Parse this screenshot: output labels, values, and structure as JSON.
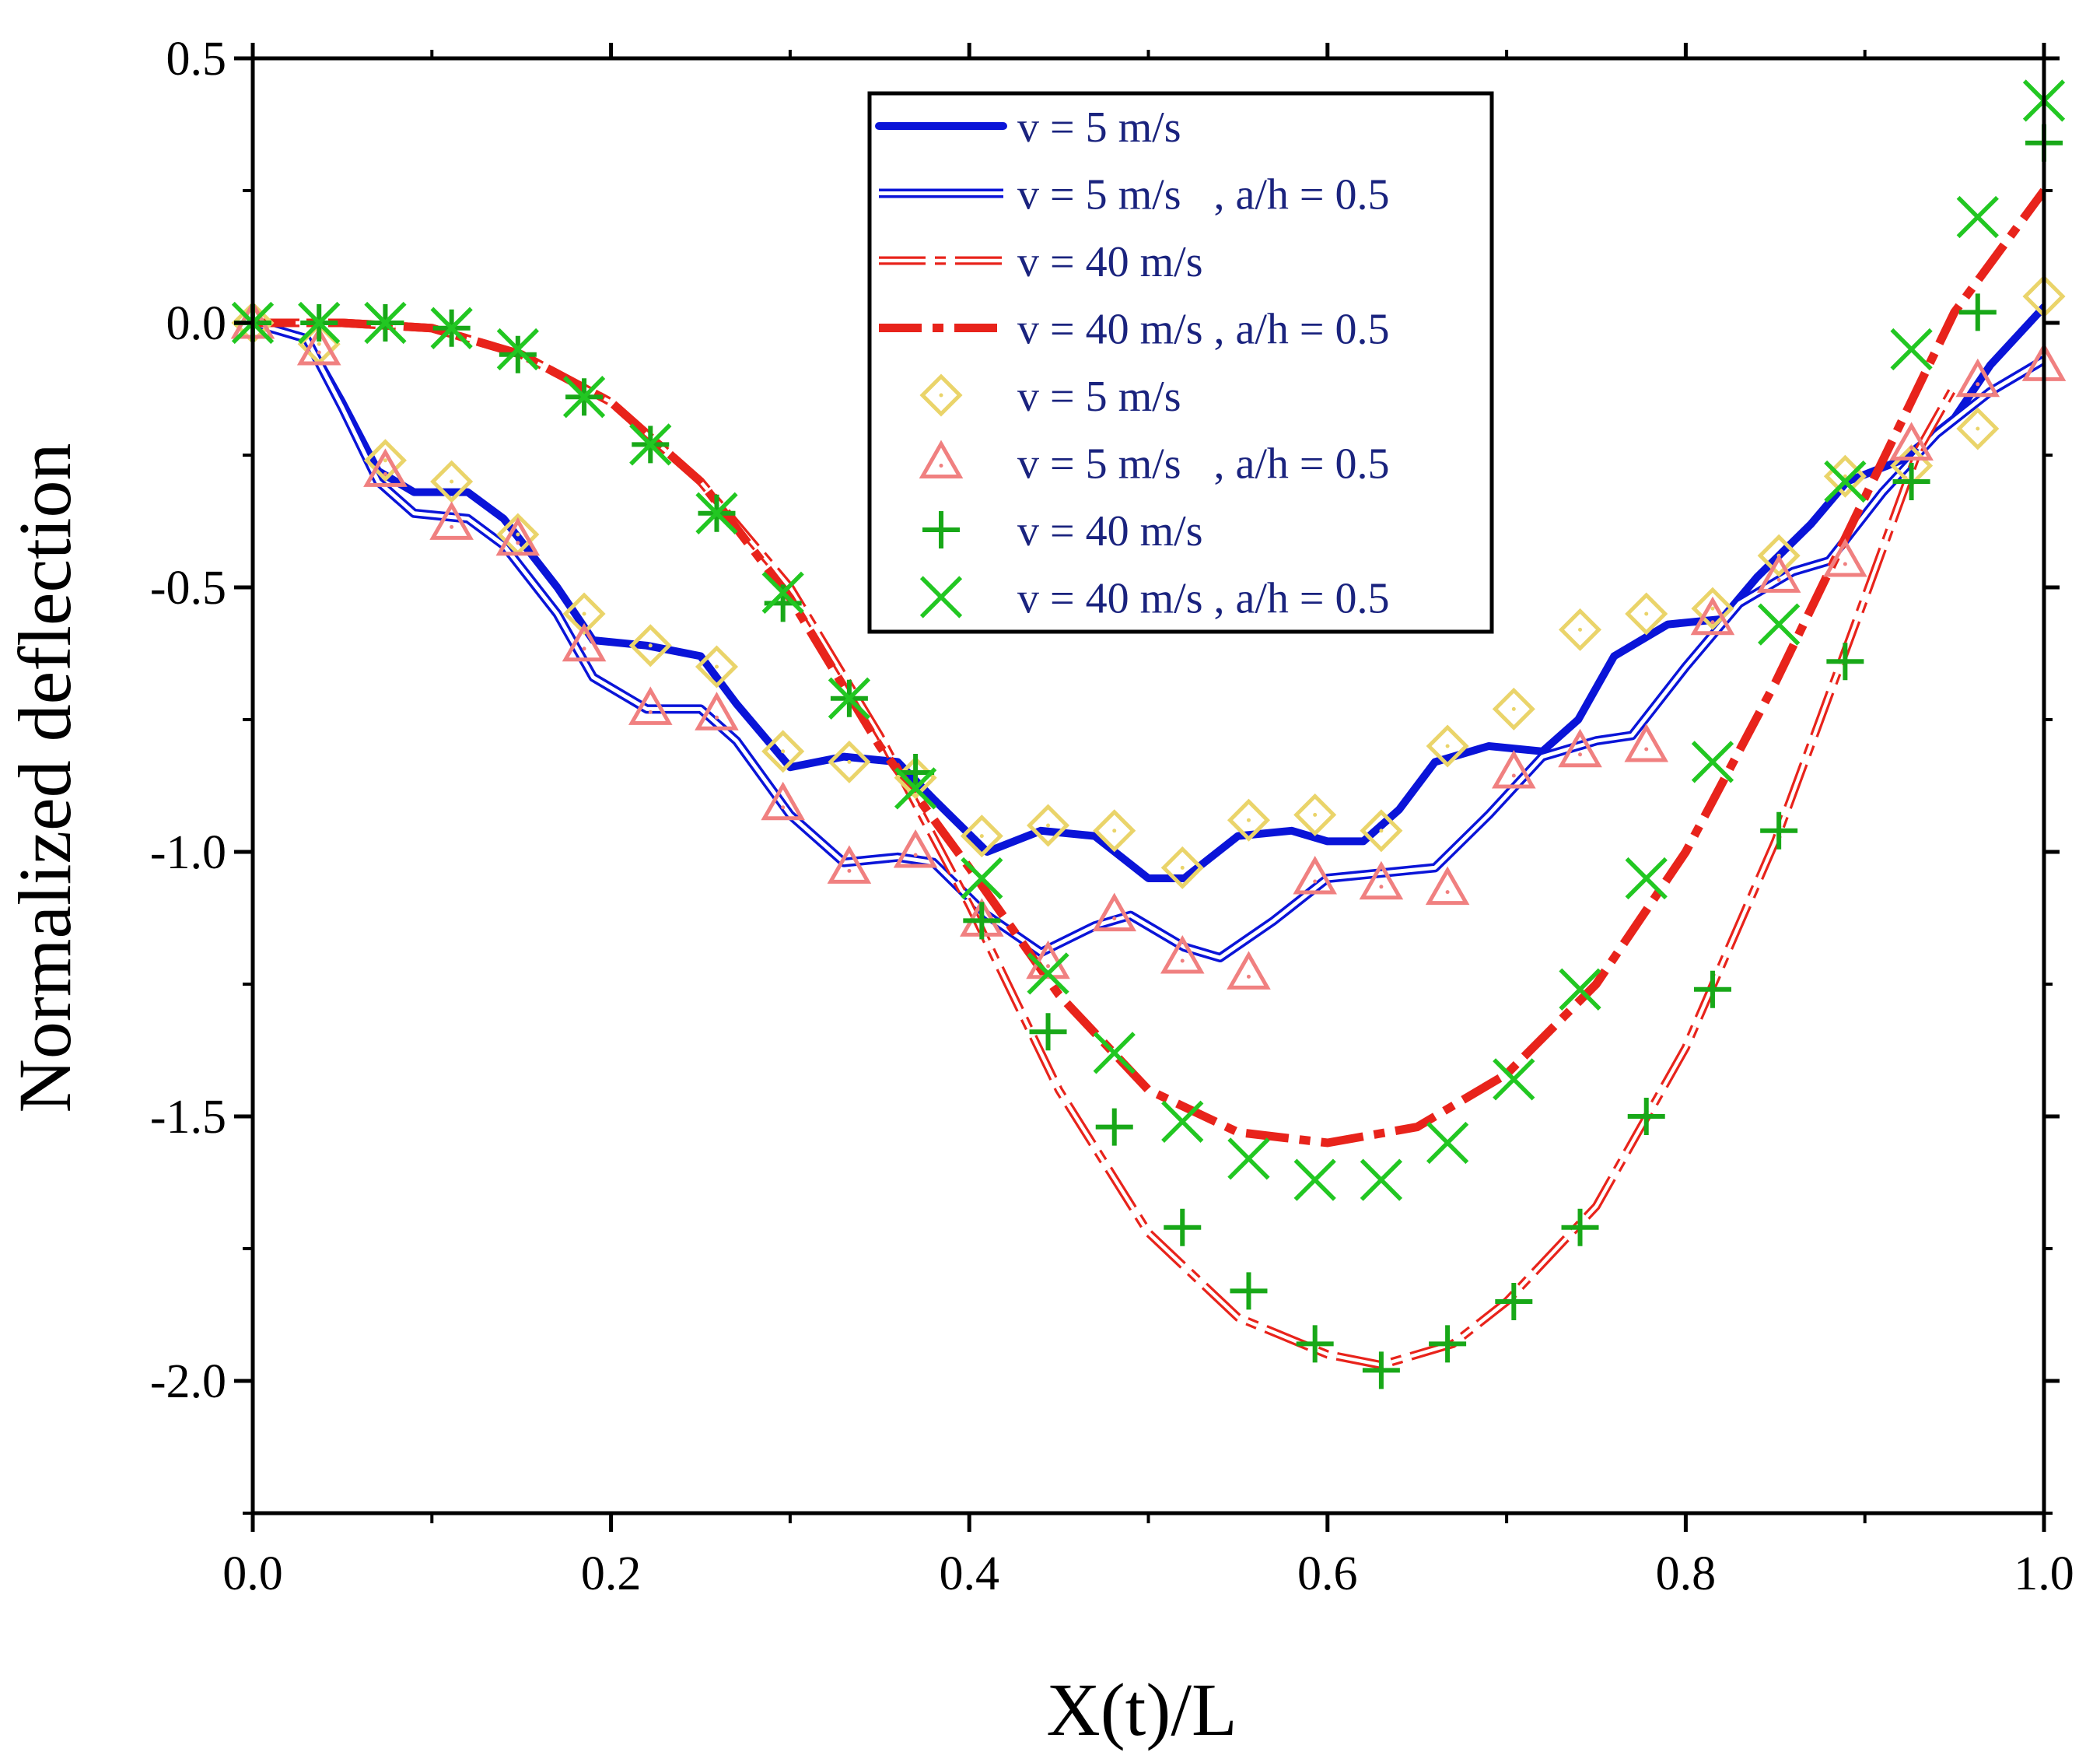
{
  "chart_data": {
    "type": "line",
    "title": "",
    "xlabel": "X(t)/L",
    "ylabel": "Normalized deflection",
    "xlim": [
      0,
      1
    ],
    "ylim": [
      -2.25,
      0.5
    ],
    "x_ticks": [
      0.0,
      0.2,
      0.4,
      0.6,
      0.8,
      1.0
    ],
    "x_tick_labels": [
      "0.0",
      "0.2",
      "0.4",
      "0.6",
      "0.8",
      "1.0"
    ],
    "y_ticks": [
      0.5,
      0.0,
      -0.5,
      -1.0,
      -1.5,
      -2.0
    ],
    "y_tick_labels": [
      "0.5",
      "0.0",
      "-0.5",
      "-1.0",
      "-1.5",
      "-2.0"
    ],
    "legend_position": "top-center",
    "series": [
      {
        "name": "v = 5 m/s",
        "style": "thick-solid",
        "color": "#0a14d8",
        "points": [
          [
            0.0,
            0.0
          ],
          [
            0.03,
            -0.03
          ],
          [
            0.05,
            -0.15
          ],
          [
            0.07,
            -0.28
          ],
          [
            0.09,
            -0.32
          ],
          [
            0.12,
            -0.32
          ],
          [
            0.14,
            -0.37
          ],
          [
            0.17,
            -0.5
          ],
          [
            0.19,
            -0.6
          ],
          [
            0.22,
            -0.61
          ],
          [
            0.25,
            -0.63
          ],
          [
            0.27,
            -0.72
          ],
          [
            0.3,
            -0.84
          ],
          [
            0.33,
            -0.82
          ],
          [
            0.36,
            -0.83
          ],
          [
            0.38,
            -0.9
          ],
          [
            0.41,
            -1.0
          ],
          [
            0.44,
            -0.96
          ],
          [
            0.47,
            -0.97
          ],
          [
            0.5,
            -1.05
          ],
          [
            0.52,
            -1.05
          ],
          [
            0.55,
            -0.97
          ],
          [
            0.58,
            -0.96
          ],
          [
            0.6,
            -0.98
          ],
          [
            0.62,
            -0.98
          ],
          [
            0.64,
            -0.92
          ],
          [
            0.66,
            -0.83
          ],
          [
            0.69,
            -0.8
          ],
          [
            0.72,
            -0.81
          ],
          [
            0.74,
            -0.75
          ],
          [
            0.76,
            -0.63
          ],
          [
            0.79,
            -0.57
          ],
          [
            0.82,
            -0.56
          ],
          [
            0.84,
            -0.48
          ],
          [
            0.87,
            -0.38
          ],
          [
            0.89,
            -0.3
          ],
          [
            0.92,
            -0.26
          ],
          [
            0.95,
            -0.18
          ],
          [
            0.97,
            -0.08
          ],
          [
            1.0,
            0.03
          ]
        ]
      },
      {
        "name": "v = 5 m/s   , a/h = 0.5",
        "style": "double-line",
        "color": "#0a14d8",
        "points": [
          [
            0.0,
            0.0
          ],
          [
            0.03,
            -0.03
          ],
          [
            0.05,
            -0.16
          ],
          [
            0.07,
            -0.3
          ],
          [
            0.09,
            -0.36
          ],
          [
            0.12,
            -0.37
          ],
          [
            0.14,
            -0.42
          ],
          [
            0.17,
            -0.55
          ],
          [
            0.19,
            -0.67
          ],
          [
            0.22,
            -0.73
          ],
          [
            0.25,
            -0.73
          ],
          [
            0.27,
            -0.79
          ],
          [
            0.3,
            -0.93
          ],
          [
            0.33,
            -1.02
          ],
          [
            0.36,
            -1.01
          ],
          [
            0.38,
            -1.02
          ],
          [
            0.41,
            -1.12
          ],
          [
            0.44,
            -1.19
          ],
          [
            0.47,
            -1.14
          ],
          [
            0.49,
            -1.12
          ],
          [
            0.52,
            -1.18
          ],
          [
            0.54,
            -1.2
          ],
          [
            0.57,
            -1.13
          ],
          [
            0.6,
            -1.05
          ],
          [
            0.63,
            -1.04
          ],
          [
            0.66,
            -1.03
          ],
          [
            0.69,
            -0.93
          ],
          [
            0.72,
            -0.82
          ],
          [
            0.75,
            -0.79
          ],
          [
            0.77,
            -0.78
          ],
          [
            0.8,
            -0.65
          ],
          [
            0.83,
            -0.53
          ],
          [
            0.86,
            -0.47
          ],
          [
            0.88,
            -0.45
          ],
          [
            0.91,
            -0.32
          ],
          [
            0.94,
            -0.21
          ],
          [
            0.97,
            -0.13
          ],
          [
            1.0,
            -0.07
          ]
        ]
      },
      {
        "name": "v = 40 m/s",
        "style": "double-dash-dot",
        "color": "#e8231b",
        "points": [
          [
            0.0,
            0.0
          ],
          [
            0.05,
            0.0
          ],
          [
            0.1,
            -0.01
          ],
          [
            0.15,
            -0.06
          ],
          [
            0.2,
            -0.15
          ],
          [
            0.25,
            -0.3
          ],
          [
            0.3,
            -0.5
          ],
          [
            0.35,
            -0.78
          ],
          [
            0.4,
            -1.1
          ],
          [
            0.45,
            -1.45
          ],
          [
            0.5,
            -1.72
          ],
          [
            0.55,
            -1.88
          ],
          [
            0.6,
            -1.95
          ],
          [
            0.63,
            -1.97
          ],
          [
            0.67,
            -1.93
          ],
          [
            0.7,
            -1.85
          ],
          [
            0.75,
            -1.67
          ],
          [
            0.8,
            -1.37
          ],
          [
            0.85,
            -0.98
          ],
          [
            0.9,
            -0.52
          ],
          [
            0.93,
            -0.24
          ],
          [
            0.95,
            -0.12
          ]
        ]
      },
      {
        "name": "v = 40 m/s , a/h = 0.5",
        "style": "thick-dash-dot",
        "color": "#e8231b",
        "points": [
          [
            0.0,
            0.0
          ],
          [
            0.05,
            0.0
          ],
          [
            0.1,
            -0.01
          ],
          [
            0.15,
            -0.06
          ],
          [
            0.2,
            -0.15
          ],
          [
            0.25,
            -0.3
          ],
          [
            0.3,
            -0.52
          ],
          [
            0.35,
            -0.8
          ],
          [
            0.4,
            -1.03
          ],
          [
            0.45,
            -1.27
          ],
          [
            0.5,
            -1.45
          ],
          [
            0.55,
            -1.53
          ],
          [
            0.6,
            -1.55
          ],
          [
            0.65,
            -1.52
          ],
          [
            0.7,
            -1.42
          ],
          [
            0.75,
            -1.25
          ],
          [
            0.8,
            -1.0
          ],
          [
            0.85,
            -0.68
          ],
          [
            0.9,
            -0.33
          ],
          [
            0.95,
            0.02
          ],
          [
            1.0,
            0.25
          ]
        ]
      },
      {
        "name": "v = 5 m/s",
        "style": "diamond",
        "color": "#ead46a",
        "points": [
          [
            0.0,
            0.0
          ],
          [
            0.037,
            -0.04
          ],
          [
            0.074,
            -0.26
          ],
          [
            0.111,
            -0.3
          ],
          [
            0.148,
            -0.4
          ],
          [
            0.185,
            -0.55
          ],
          [
            0.222,
            -0.61
          ],
          [
            0.259,
            -0.65
          ],
          [
            0.296,
            -0.81
          ],
          [
            0.333,
            -0.83
          ],
          [
            0.37,
            -0.86
          ],
          [
            0.407,
            -0.97
          ],
          [
            0.444,
            -0.95
          ],
          [
            0.481,
            -0.96
          ],
          [
            0.519,
            -1.03
          ],
          [
            0.556,
            -0.94
          ],
          [
            0.593,
            -0.93
          ],
          [
            0.63,
            -0.96
          ],
          [
            0.667,
            -0.8
          ],
          [
            0.704,
            -0.73
          ],
          [
            0.741,
            -0.58
          ],
          [
            0.778,
            -0.55
          ],
          [
            0.815,
            -0.54
          ],
          [
            0.852,
            -0.44
          ],
          [
            0.889,
            -0.29
          ],
          [
            0.926,
            -0.27
          ],
          [
            0.963,
            -0.2
          ],
          [
            1.0,
            0.05
          ]
        ]
      },
      {
        "name": "v = 5 m/s   , a/h = 0.5",
        "style": "triangle",
        "color": "#f08080",
        "points": [
          [
            0.0,
            0.0
          ],
          [
            0.037,
            -0.05
          ],
          [
            0.074,
            -0.28
          ],
          [
            0.111,
            -0.38
          ],
          [
            0.148,
            -0.41
          ],
          [
            0.185,
            -0.61
          ],
          [
            0.222,
            -0.73
          ],
          [
            0.259,
            -0.74
          ],
          [
            0.296,
            -0.91
          ],
          [
            0.333,
            -1.03
          ],
          [
            0.37,
            -1.0
          ],
          [
            0.407,
            -1.13
          ],
          [
            0.444,
            -1.21
          ],
          [
            0.481,
            -1.12
          ],
          [
            0.519,
            -1.2
          ],
          [
            0.556,
            -1.23
          ],
          [
            0.593,
            -1.05
          ],
          [
            0.63,
            -1.06
          ],
          [
            0.667,
            -1.07
          ],
          [
            0.704,
            -0.85
          ],
          [
            0.741,
            -0.81
          ],
          [
            0.778,
            -0.8
          ],
          [
            0.815,
            -0.56
          ],
          [
            0.852,
            -0.48
          ],
          [
            0.889,
            -0.45
          ],
          [
            0.926,
            -0.23
          ],
          [
            0.963,
            -0.11
          ],
          [
            1.0,
            -0.08
          ]
        ]
      },
      {
        "name": "v = 40 m/s",
        "style": "plus",
        "color": "#18a818",
        "points": [
          [
            0.0,
            0.0
          ],
          [
            0.037,
            0.0
          ],
          [
            0.074,
            0.0
          ],
          [
            0.111,
            -0.01
          ],
          [
            0.148,
            -0.06
          ],
          [
            0.185,
            -0.14
          ],
          [
            0.222,
            -0.23
          ],
          [
            0.259,
            -0.36
          ],
          [
            0.296,
            -0.53
          ],
          [
            0.333,
            -0.71
          ],
          [
            0.37,
            -0.85
          ],
          [
            0.407,
            -1.13
          ],
          [
            0.444,
            -1.34
          ],
          [
            0.481,
            -1.52
          ],
          [
            0.519,
            -1.71
          ],
          [
            0.556,
            -1.83
          ],
          [
            0.593,
            -1.93
          ],
          [
            0.63,
            -1.98
          ],
          [
            0.667,
            -1.93
          ],
          [
            0.704,
            -1.85
          ],
          [
            0.741,
            -1.71
          ],
          [
            0.778,
            -1.5
          ],
          [
            0.815,
            -1.26
          ],
          [
            0.852,
            -0.96
          ],
          [
            0.889,
            -0.64
          ],
          [
            0.926,
            -0.3
          ],
          [
            0.963,
            0.02
          ],
          [
            1.0,
            0.34
          ]
        ]
      },
      {
        "name": "v = 40 m/s , a/h = 0.5",
        "style": "cross",
        "color": "#22c722",
        "points": [
          [
            0.0,
            0.0
          ],
          [
            0.037,
            0.0
          ],
          [
            0.074,
            0.0
          ],
          [
            0.111,
            -0.01
          ],
          [
            0.148,
            -0.05
          ],
          [
            0.185,
            -0.14
          ],
          [
            0.222,
            -0.23
          ],
          [
            0.259,
            -0.36
          ],
          [
            0.296,
            -0.51
          ],
          [
            0.333,
            -0.71
          ],
          [
            0.37,
            -0.88
          ],
          [
            0.407,
            -1.05
          ],
          [
            0.444,
            -1.23
          ],
          [
            0.481,
            -1.38
          ],
          [
            0.519,
            -1.51
          ],
          [
            0.556,
            -1.58
          ],
          [
            0.593,
            -1.62
          ],
          [
            0.63,
            -1.62
          ],
          [
            0.667,
            -1.55
          ],
          [
            0.704,
            -1.43
          ],
          [
            0.741,
            -1.26
          ],
          [
            0.778,
            -1.05
          ],
          [
            0.815,
            -0.83
          ],
          [
            0.852,
            -0.57
          ],
          [
            0.889,
            -0.3
          ],
          [
            0.926,
            -0.05
          ],
          [
            0.963,
            0.2
          ],
          [
            1.0,
            0.42
          ]
        ]
      }
    ]
  }
}
